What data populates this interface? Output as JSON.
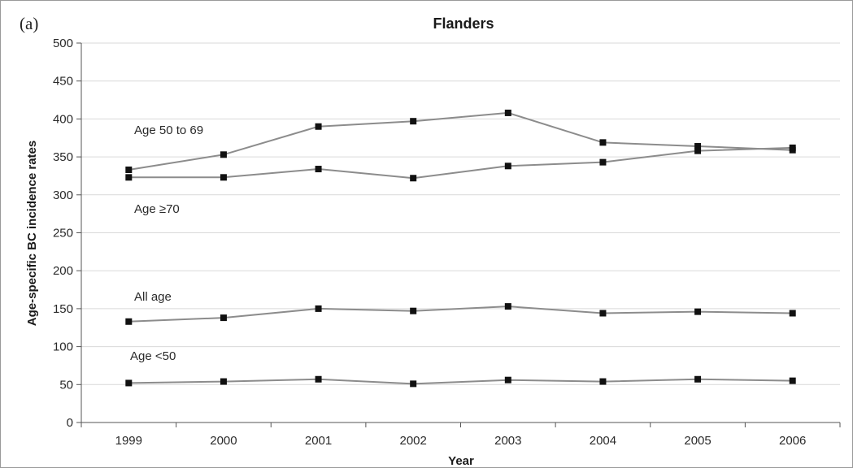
{
  "panel_label": "(a)",
  "chart_data": {
    "type": "line",
    "title": "Flanders",
    "xlabel": "Year",
    "ylabel": "Age-specific BC incidence rates",
    "categories": [
      "1999",
      "2000",
      "2001",
      "2002",
      "2003",
      "2004",
      "2005",
      "2006"
    ],
    "ylim": [
      0,
      500
    ],
    "yticks": [
      0,
      50,
      100,
      150,
      200,
      250,
      300,
      350,
      400,
      450,
      500
    ],
    "grid": true,
    "legend": "none",
    "series": [
      {
        "name": "Age 50 to 69",
        "values": [
          333,
          353,
          390,
          397,
          408,
          369,
          364,
          359
        ]
      },
      {
        "name": "Age ≥70",
        "values": [
          323,
          323,
          334,
          322,
          338,
          343,
          358,
          362
        ]
      },
      {
        "name": "All age",
        "values": [
          133,
          138,
          150,
          147,
          153,
          144,
          146,
          144
        ]
      },
      {
        "name": "Age <50",
        "values": [
          52,
          54,
          57,
          51,
          56,
          54,
          57,
          55
        ]
      }
    ],
    "colors": {
      "line": "#8c8c8c",
      "marker": "#111111",
      "grid": "#d9d9d9",
      "axis": "#555555"
    }
  }
}
